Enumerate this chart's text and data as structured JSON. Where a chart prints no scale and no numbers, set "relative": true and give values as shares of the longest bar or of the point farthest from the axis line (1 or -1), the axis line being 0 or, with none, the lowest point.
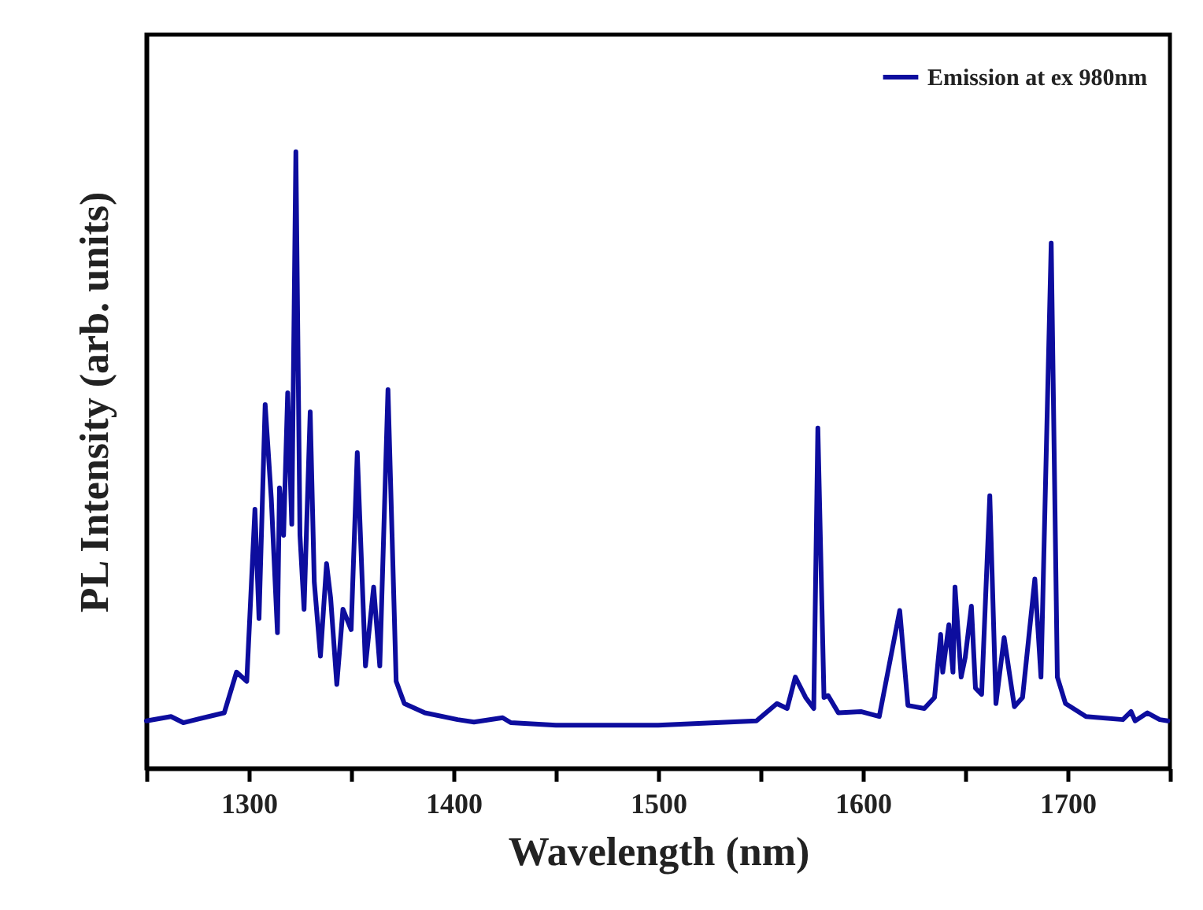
{
  "chart_data": {
    "type": "line",
    "xlabel": "Wavelength (nm)",
    "ylabel": "PL Intensity (arb. units)",
    "relative": true,
    "legend": "top right",
    "marker": "none",
    "line_style": "solid",
    "grid": false,
    "xlim": [
      1250,
      1750
    ],
    "xticks": [
      {
        "value": 1250,
        "label": null
      },
      1300,
      {
        "value": 1350,
        "label": null
      },
      1400,
      {
        "value": 1450,
        "label": null
      },
      1500,
      {
        "value": 1550,
        "label": null
      },
      1600,
      {
        "value": 1650,
        "label": null
      },
      1700,
      {
        "value": 1750,
        "label": null
      }
    ],
    "x": [
      1250,
      1262,
      1268,
      1288,
      1294,
      1299,
      1303,
      1305,
      1308,
      1311,
      1314,
      1315,
      1317,
      1319,
      1321,
      1323,
      1325,
      1327,
      1330,
      1332,
      1335,
      1338,
      1340,
      1343,
      1346,
      1350,
      1353,
      1357,
      1361,
      1364,
      1368,
      1372,
      1376,
      1386,
      1402,
      1410,
      1424,
      1428,
      1450,
      1500,
      1548,
      1558,
      1563,
      1567,
      1572,
      1576,
      1578,
      1581,
      1583,
      1588,
      1599,
      1608,
      1618,
      1622,
      1630,
      1635,
      1638,
      1639,
      1642,
      1644,
      1645,
      1648,
      1650,
      1653,
      1655,
      1658,
      1662,
      1665,
      1669,
      1674,
      1678,
      1684,
      1687,
      1692,
      1695,
      1699,
      1709,
      1727,
      1731,
      1733,
      1739,
      1745,
      1749
    ],
    "series": [
      {
        "name": "Emission at ex 980nm",
        "color": "#0d0d9e",
        "values": [
          0.077,
          0.084,
          0.074,
          0.09,
          0.156,
          0.141,
          0.42,
          0.243,
          0.59,
          0.437,
          0.22,
          0.455,
          0.378,
          0.609,
          0.396,
          1,
          0.378,
          0.258,
          0.578,
          0.302,
          0.182,
          0.332,
          0.276,
          0.136,
          0.258,
          0.225,
          0.512,
          0.166,
          0.294,
          0.166,
          0.614,
          0.141,
          0.105,
          0.09,
          0.079,
          0.075,
          0.082,
          0.074,
          0.07,
          0.07,
          0.077,
          0.105,
          0.097,
          0.148,
          0.115,
          0.097,
          0.552,
          0.115,
          0.118,
          0.09,
          0.092,
          0.084,
          0.256,
          0.102,
          0.097,
          0.115,
          0.217,
          0.156,
          0.233,
          0.156,
          0.294,
          0.148,
          0.18,
          0.263,
          0.13,
          0.12,
          0.442,
          0.105,
          0.212,
          0.1,
          0.115,
          0.307,
          0.148,
          0.852,
          0.148,
          0.105,
          0.084,
          0.079,
          0.092,
          0.077,
          0.09,
          0.079,
          0.077
        ]
      }
    ]
  }
}
